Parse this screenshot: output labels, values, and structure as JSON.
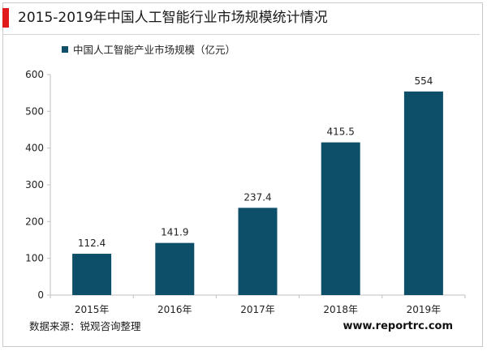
{
  "title": "2015-2019年中国人工智能行业市场规模统计情况",
  "source": "数据来源：锐观咨询整理",
  "watermark": "www.reportrc.com",
  "colors": {
    "bar": "#0d4e69",
    "accent": "#e01a1a",
    "axis": "#bfbfbf"
  },
  "chart_data": {
    "type": "bar",
    "title": "",
    "categories": [
      "2015年",
      "2016年",
      "2017年",
      "2018年",
      "2019年"
    ],
    "series": [
      {
        "name": "中国人工智能产业市场规模（亿元）",
        "values": [
          112.4,
          141.9,
          237.4,
          415.5,
          554
        ],
        "labels": [
          "112.4",
          "141.9",
          "237.4",
          "415.5",
          "554"
        ]
      }
    ],
    "ylim": [
      0,
      600
    ],
    "yticks": [
      0,
      100,
      200,
      300,
      400,
      500,
      600
    ],
    "xlabel": "",
    "ylabel": "",
    "grid": false,
    "legend_position": "top-left"
  }
}
